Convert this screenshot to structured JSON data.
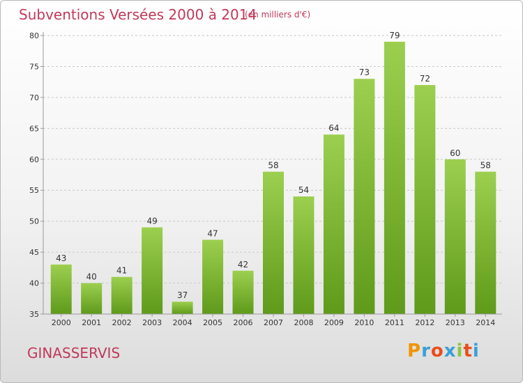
{
  "title": "Subventions Versées 2000 à 2014",
  "subtitle": "(en milliers d'€)",
  "commune": "GINASSERVIS",
  "logo": {
    "letters": [
      "P",
      "r",
      "o",
      "x",
      "i",
      "t",
      "i"
    ],
    "colors": [
      "#f29400",
      "#3aa0d8",
      "#e94e1b",
      "#3aa0d8",
      "#8dc63f",
      "#e94e1b",
      "#3aa0d8"
    ]
  },
  "colors": {
    "title": "#c0395a",
    "bar_top": "#9ccf4f",
    "bar_bottom": "#5f9a1a",
    "grid": "#c8c8c8",
    "axis": "#999999"
  },
  "chart_data": {
    "type": "bar",
    "categories": [
      "2000",
      "2001",
      "2002",
      "2003",
      "2004",
      "2005",
      "2006",
      "2007",
      "2008",
      "2009",
      "2010",
      "2011",
      "2012",
      "2013",
      "2014"
    ],
    "values": [
      43,
      40,
      41,
      49,
      37,
      47,
      42,
      58,
      54,
      64,
      73,
      79,
      72,
      60,
      58
    ],
    "ylim": [
      35,
      80
    ],
    "yticks": [
      35,
      40,
      45,
      50,
      55,
      60,
      65,
      70,
      75,
      80
    ],
    "grid": "horizontal dashed",
    "legend": "none",
    "data_labels": true
  }
}
